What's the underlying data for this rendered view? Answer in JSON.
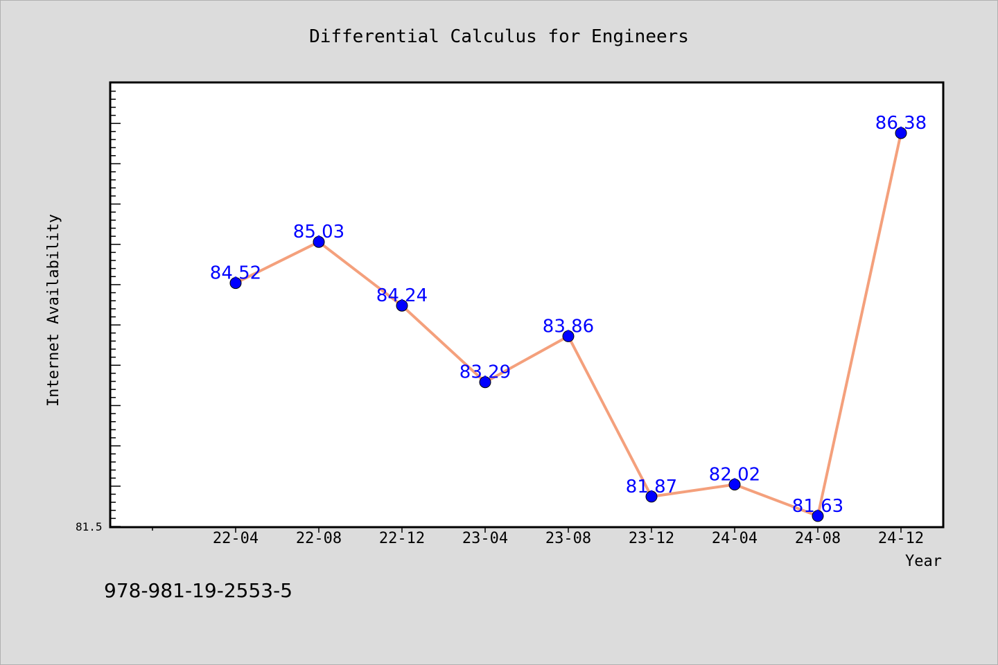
{
  "chart_data": {
    "type": "line",
    "title": "Differential Calculus for Engineers",
    "xlabel": "Year",
    "ylabel": "Internet Availability",
    "categories": [
      "22-04",
      "22-08",
      "22-12",
      "23-04",
      "23-08",
      "23-12",
      "24-04",
      "24-08",
      "24-12"
    ],
    "series": [
      {
        "values": [
          84.52,
          85.03,
          84.24,
          83.29,
          83.86,
          81.87,
          82.02,
          81.63,
          86.38
        ]
      }
    ],
    "data_labels": [
      "84.52",
      "85.03",
      "84.24",
      "83.29",
      "83.86",
      "81.87",
      "82.02",
      "81.63",
      "86.38"
    ],
    "y_tick_label": "81.5",
    "ylim": [
      81.5,
      87.0
    ],
    "grid": false,
    "colors": {
      "line": "#f4a07c",
      "marker": "#0000ff",
      "label": "#0000ff",
      "background": "#dcdcdc",
      "plot_background": "#ffffff"
    }
  },
  "footer_text": "978-981-19-2553-5"
}
